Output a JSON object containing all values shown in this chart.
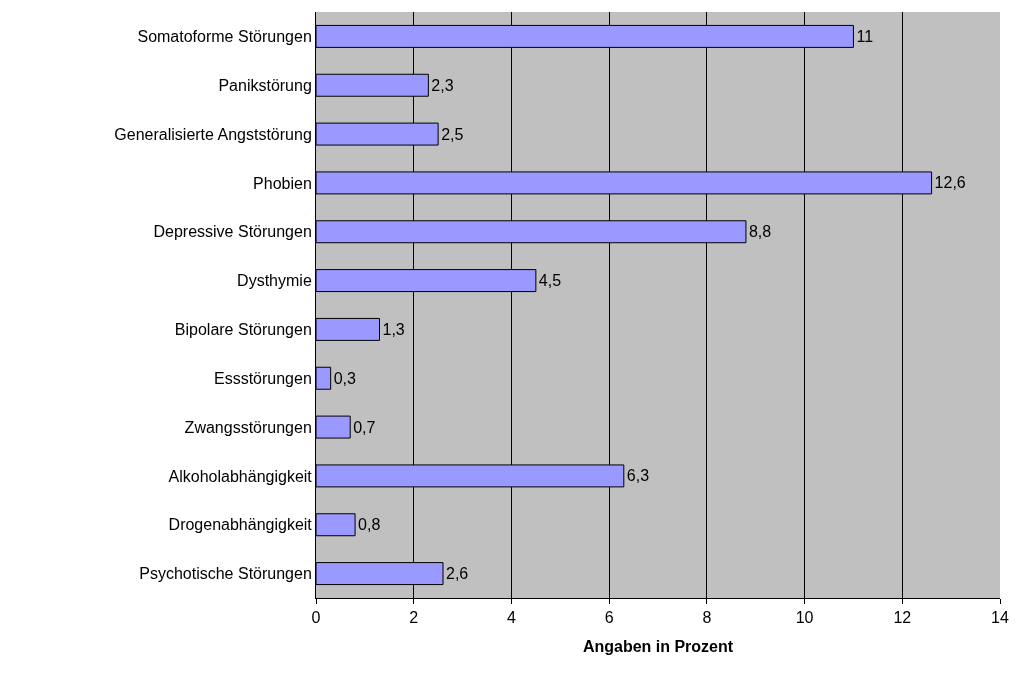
{
  "chart_data": {
    "type": "bar",
    "orientation": "horizontal",
    "xlabel": "Angaben in Prozent",
    "categories": [
      "Somatoforme Störungen",
      "Panikstörung",
      "Generalisierte Angststörung",
      "Phobien",
      "Depressive Störungen",
      "Dysthymie",
      "Bipolare Störungen",
      "Essstörungen",
      "Zwangsstörungen",
      "Alkoholabhängigkeit",
      "Drogenabhängigkeit",
      "Psychotische Störungen"
    ],
    "values": [
      11,
      2.3,
      2.5,
      12.6,
      8.8,
      4.5,
      1.3,
      0.3,
      0.7,
      6.3,
      0.8,
      2.6
    ],
    "value_labels": [
      "11",
      "2,3",
      "2,5",
      "12,6",
      "8,8",
      "4,5",
      "1,3",
      "0,3",
      "0,7",
      "6,3",
      "0,8",
      "2,6"
    ],
    "color": "#9999ff",
    "xlim": [
      0,
      14
    ],
    "xticks": [
      0,
      2,
      4,
      6,
      8,
      10,
      12,
      14
    ],
    "grid": "x",
    "legend": false
  }
}
